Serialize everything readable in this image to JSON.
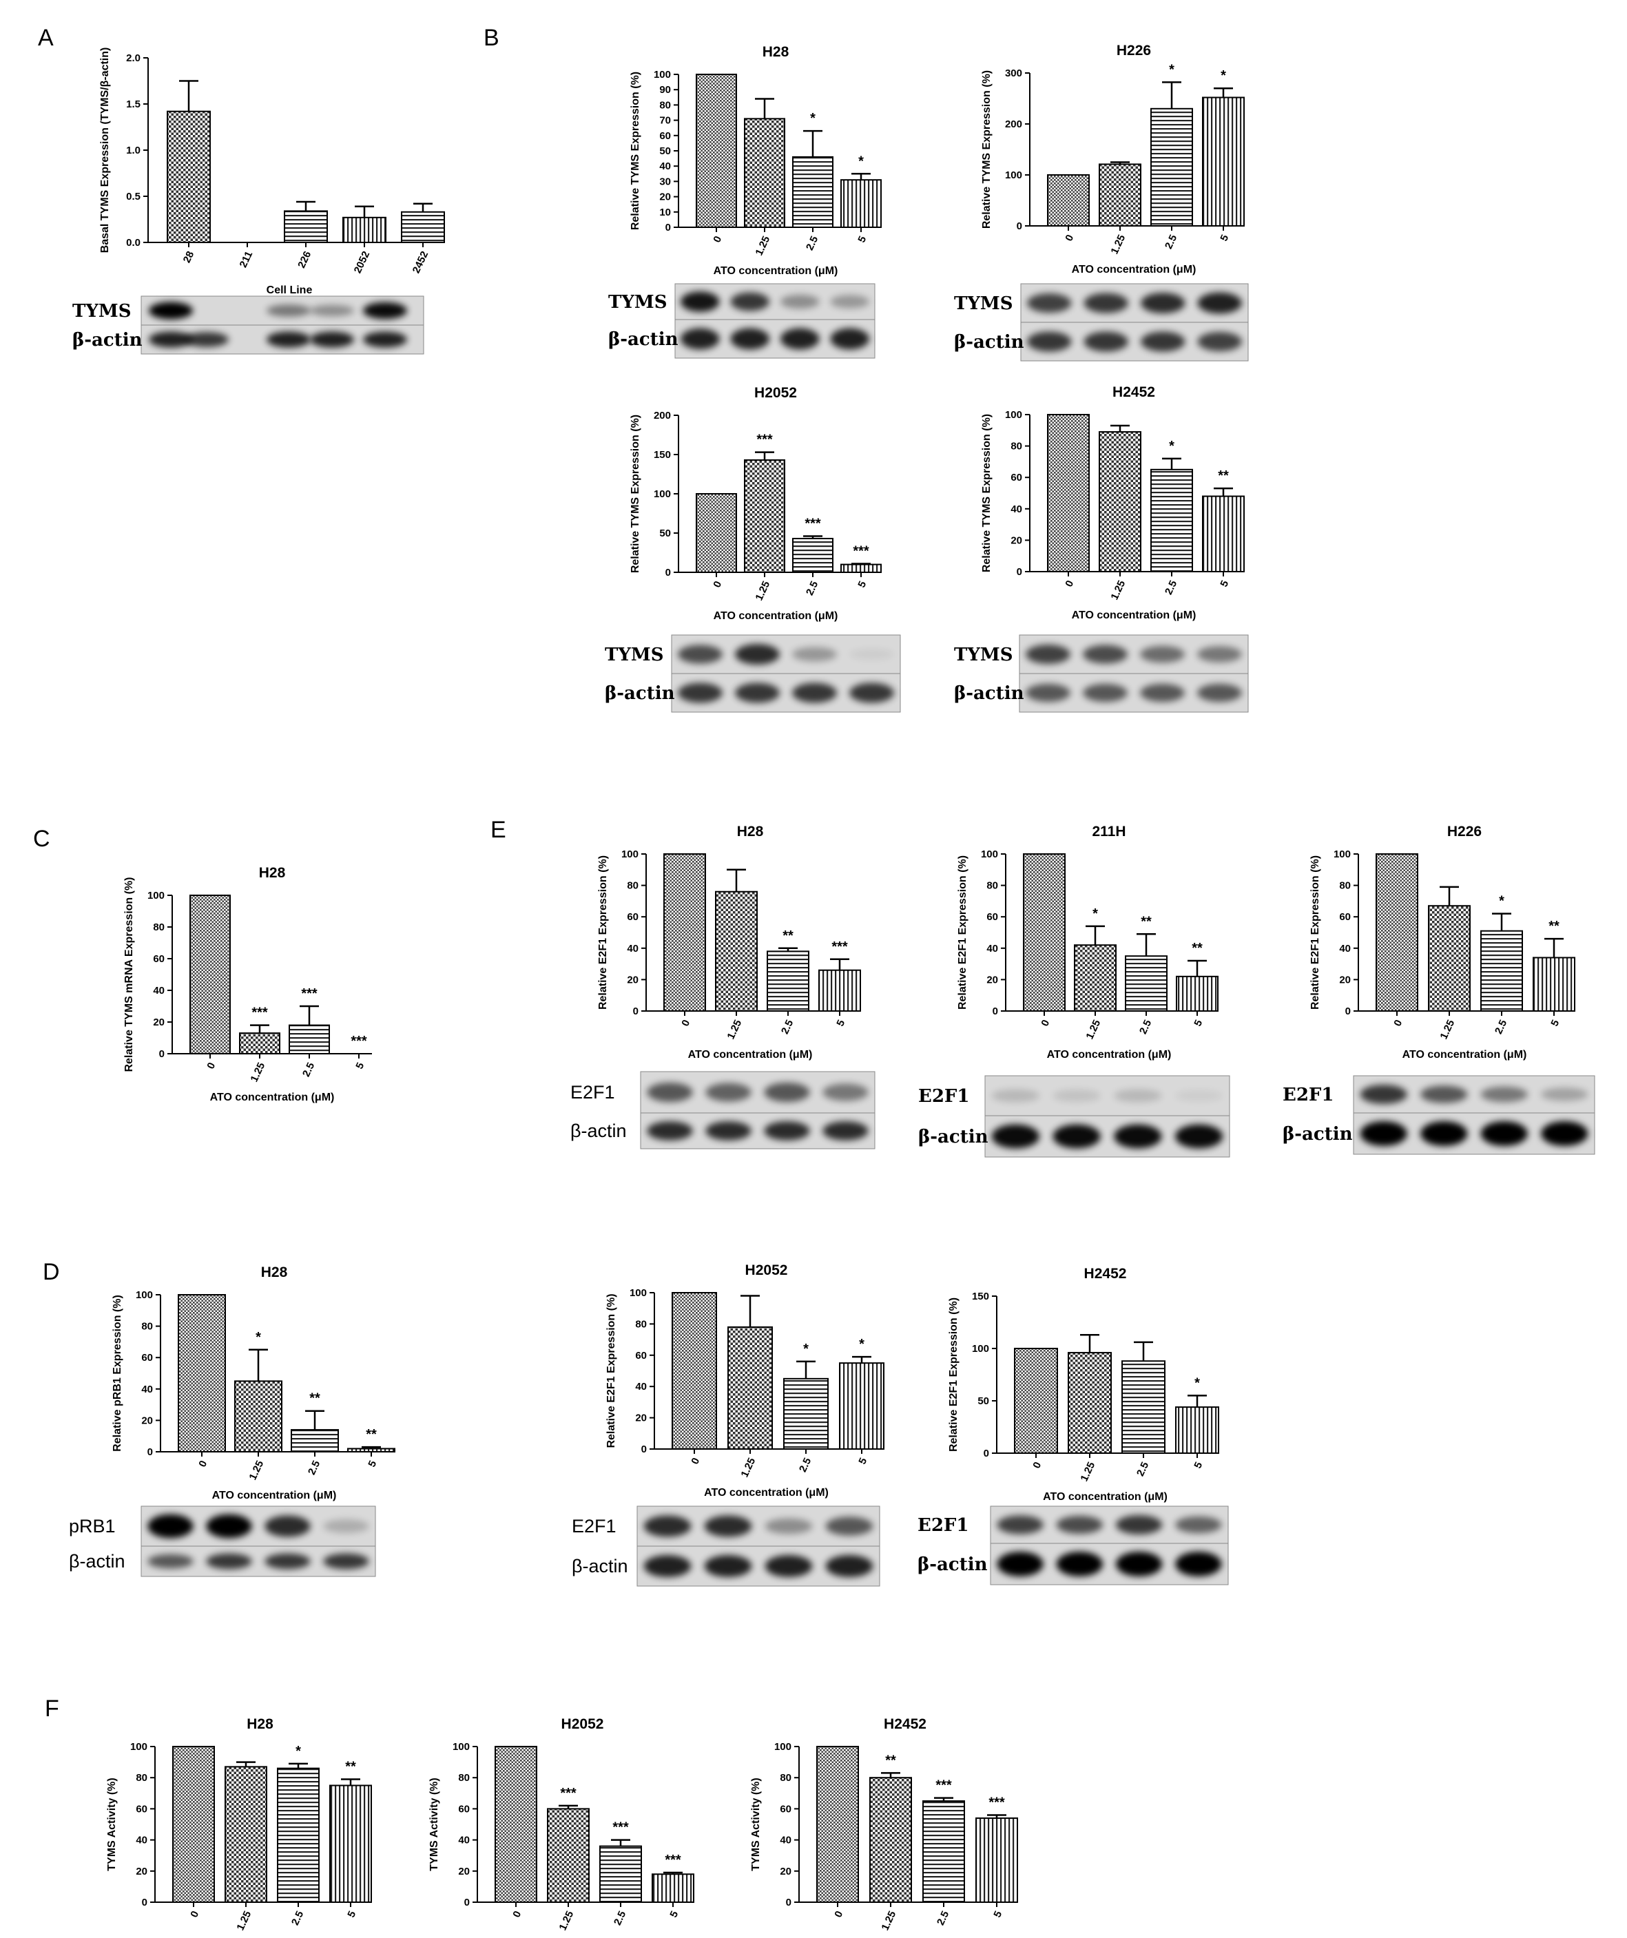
{
  "panels": [
    {
      "label": "A",
      "x": 55,
      "y": 42
    },
    {
      "label": "B",
      "x": 702,
      "y": 42
    },
    {
      "label": "C",
      "x": 48,
      "y": 1205
    },
    {
      "label": "E",
      "x": 712,
      "y": 1192
    },
    {
      "label": "D",
      "x": 62,
      "y": 1834
    },
    {
      "label": "F",
      "x": 65,
      "y": 2468
    }
  ],
  "chart_data": [
    {
      "id": "A",
      "type": "bar",
      "title": "",
      "categories": [
        "28",
        "211",
        "226",
        "2052",
        "2452"
      ],
      "values": [
        1.42,
        0,
        0.34,
        0.27,
        0.33
      ],
      "errors": [
        0.33,
        0,
        0.1,
        0.12,
        0.09
      ],
      "stars": [
        "",
        "",
        "",
        "",
        ""
      ],
      "ylim": [
        0,
        2.0
      ],
      "yticks": [
        "0.0",
        "0.5",
        "1.0",
        "1.5",
        "2.0"
      ],
      "ylabel": "Basal TYMS Expression (TYMS/β-actin)",
      "xlabel": "Cell Line",
      "patterns": [
        "check",
        "none",
        "hline",
        "vline",
        "hline"
      ]
    },
    {
      "id": "B1",
      "type": "bar",
      "title": "H28",
      "categories": [
        "0",
        "1.25",
        "2.5",
        "5"
      ],
      "values": [
        100,
        71,
        46,
        31
      ],
      "errors": [
        0,
        13,
        17,
        4
      ],
      "stars": [
        "",
        "",
        "*",
        "*"
      ],
      "ylim": [
        0,
        100
      ],
      "yticks": [
        "0",
        "10",
        "20",
        "30",
        "40",
        "50",
        "60",
        "70",
        "80",
        "90",
        "100"
      ],
      "ylabel": "Relative TYMS Expression (%)",
      "xlabel": "ATO concentration (μM)",
      "patterns": [
        "dots",
        "check",
        "hline",
        "vline"
      ]
    },
    {
      "id": "B2",
      "type": "bar",
      "title": "H226",
      "categories": [
        "0",
        "1.25",
        "2.5",
        "5"
      ],
      "values": [
        100,
        121,
        230,
        252
      ],
      "errors": [
        0,
        4,
        52,
        18
      ],
      "stars": [
        "",
        "",
        "*",
        "*"
      ],
      "ylim": [
        0,
        300
      ],
      "yticks": [
        "0",
        "100",
        "200",
        "300"
      ],
      "ylabel": "Relative TYMS Expression (%)",
      "xlabel": "ATO concentration (μM)",
      "patterns": [
        "dots",
        "check",
        "hline",
        "vline"
      ]
    },
    {
      "id": "B3",
      "type": "bar",
      "title": "H2052",
      "categories": [
        "0",
        "1.25",
        "2.5",
        "5"
      ],
      "values": [
        100,
        143,
        43,
        10
      ],
      "errors": [
        0,
        10,
        3,
        1
      ],
      "stars": [
        "",
        "***",
        "***",
        "***"
      ],
      "ylim": [
        0,
        200
      ],
      "yticks": [
        "0",
        "50",
        "100",
        "150",
        "200"
      ],
      "ylabel": "Relative TYMS Expression (%)",
      "xlabel": "ATO concentration (μM)",
      "patterns": [
        "dots",
        "check",
        "hline",
        "vline"
      ]
    },
    {
      "id": "B4",
      "type": "bar",
      "title": "H2452",
      "categories": [
        "0",
        "1.25",
        "2.5",
        "5"
      ],
      "values": [
        100,
        89,
        65,
        48
      ],
      "errors": [
        0,
        4,
        7,
        5
      ],
      "stars": [
        "",
        "",
        "*",
        "**"
      ],
      "ylim": [
        0,
        100
      ],
      "yticks": [
        "0",
        "20",
        "40",
        "60",
        "80",
        "100"
      ],
      "ylabel": "Relative TYMS Expression (%)",
      "xlabel": "ATO concentration (μM)",
      "patterns": [
        "dots",
        "check",
        "hline",
        "vline"
      ]
    },
    {
      "id": "C",
      "type": "bar",
      "title": "H28",
      "categories": [
        "0",
        "1.25",
        "2.5",
        "5"
      ],
      "values": [
        100,
        13,
        18,
        0
      ],
      "errors": [
        0,
        5,
        12,
        0
      ],
      "stars": [
        "",
        "***",
        "***",
        "***"
      ],
      "ylim": [
        0,
        100
      ],
      "yticks": [
        "0",
        "20",
        "40",
        "60",
        "80",
        "100"
      ],
      "ylabel": "Relative TYMS mRNA Expression (%)",
      "xlabel": "ATO concentration (μM)",
      "patterns": [
        "dots",
        "check",
        "hline",
        "vline"
      ]
    },
    {
      "id": "E1",
      "type": "bar",
      "title": "H28",
      "categories": [
        "0",
        "1.25",
        "2.5",
        "5"
      ],
      "values": [
        100,
        76,
        38,
        26
      ],
      "errors": [
        0,
        14,
        2,
        7
      ],
      "stars": [
        "",
        "",
        "**",
        "***"
      ],
      "ylim": [
        0,
        100
      ],
      "yticks": [
        "0",
        "20",
        "40",
        "60",
        "80",
        "100"
      ],
      "ylabel": "Relative E2F1 Expression (%)",
      "xlabel": "ATO concentration (μM)",
      "patterns": [
        "dots",
        "check",
        "hline",
        "vline"
      ]
    },
    {
      "id": "E2",
      "type": "bar",
      "title": "211H",
      "categories": [
        "0",
        "1.25",
        "2.5",
        "5"
      ],
      "values": [
        100,
        42,
        35,
        22
      ],
      "errors": [
        0,
        12,
        14,
        10
      ],
      "stars": [
        "",
        "*",
        "**",
        "**"
      ],
      "ylim": [
        0,
        100
      ],
      "yticks": [
        "0",
        "20",
        "40",
        "60",
        "80",
        "100"
      ],
      "ylabel": "Relative E2F1 Expression (%)",
      "xlabel": "ATO concentration (μM)",
      "patterns": [
        "dots",
        "check",
        "hline",
        "vline"
      ]
    },
    {
      "id": "E3",
      "type": "bar",
      "title": "H226",
      "categories": [
        "0",
        "1.25",
        "2.5",
        "5"
      ],
      "values": [
        100,
        67,
        51,
        34
      ],
      "errors": [
        0,
        12,
        11,
        12
      ],
      "stars": [
        "",
        "",
        "*",
        "**"
      ],
      "ylim": [
        0,
        100
      ],
      "yticks": [
        "0",
        "20",
        "40",
        "60",
        "80",
        "100"
      ],
      "ylabel": "Relative E2F1 Expression (%)",
      "xlabel": "ATO concentration (μM)",
      "patterns": [
        "dots",
        "check",
        "hline",
        "vline"
      ]
    },
    {
      "id": "D1",
      "type": "bar",
      "title": "H28",
      "categories": [
        "0",
        "1.25",
        "2.5",
        "5"
      ],
      "values": [
        100,
        45,
        14,
        2
      ],
      "errors": [
        0,
        20,
        12,
        1
      ],
      "stars": [
        "",
        "*",
        "**",
        "**"
      ],
      "ylim": [
        0,
        100
      ],
      "yticks": [
        "0",
        "20",
        "40",
        "60",
        "80",
        "100"
      ],
      "ylabel": "Relative pRB1 Expression (%)",
      "xlabel": "ATO concentration (μM)",
      "patterns": [
        "dots",
        "check",
        "hline",
        "vline"
      ]
    },
    {
      "id": "D2",
      "type": "bar",
      "title": "H2052",
      "categories": [
        "0",
        "1.25",
        "2.5",
        "5"
      ],
      "values": [
        100,
        78,
        45,
        55
      ],
      "errors": [
        0,
        20,
        11,
        4
      ],
      "stars": [
        "",
        "",
        "*",
        "*"
      ],
      "ylim": [
        0,
        100
      ],
      "yticks": [
        "0",
        "20",
        "40",
        "60",
        "80",
        "100"
      ],
      "ylabel": "Relative E2F1 Expression (%)",
      "xlabel": "ATO concentration (μM)",
      "patterns": [
        "dots",
        "check",
        "hline",
        "vline"
      ]
    },
    {
      "id": "D3",
      "type": "bar",
      "title": "H2452",
      "categories": [
        "0",
        "1.25",
        "2.5",
        "5"
      ],
      "values": [
        100,
        96,
        88,
        44
      ],
      "errors": [
        0,
        17,
        18,
        11
      ],
      "stars": [
        "",
        "",
        "",
        "*"
      ],
      "ylim": [
        0,
        150
      ],
      "yticks": [
        "0",
        "50",
        "100",
        "150"
      ],
      "ylabel": "Relative E2F1 Expression (%)",
      "xlabel": "ATO concentration (μM)",
      "patterns": [
        "dots",
        "check",
        "hline",
        "vline"
      ]
    },
    {
      "id": "F1",
      "type": "bar",
      "title": "H28",
      "categories": [
        "0",
        "1.25",
        "2.5",
        "5"
      ],
      "values": [
        100,
        87,
        86,
        75
      ],
      "errors": [
        0,
        3,
        3,
        4
      ],
      "stars": [
        "",
        "",
        "*",
        "**"
      ],
      "ylim": [
        0,
        100
      ],
      "yticks": [
        "0",
        "20",
        "40",
        "60",
        "80",
        "100"
      ],
      "ylabel": "TYMS Activity (%)",
      "xlabel": "ATO concentration (μM)",
      "patterns": [
        "dots",
        "check",
        "hline",
        "vline"
      ]
    },
    {
      "id": "F2",
      "type": "bar",
      "title": "H2052",
      "categories": [
        "0",
        "1.25",
        "2.5",
        "5"
      ],
      "values": [
        100,
        60,
        36,
        18
      ],
      "errors": [
        0,
        2,
        4,
        1
      ],
      "stars": [
        "",
        "***",
        "***",
        "***"
      ],
      "ylim": [
        0,
        100
      ],
      "yticks": [
        "0",
        "20",
        "40",
        "60",
        "80",
        "100"
      ],
      "ylabel": "TYMS Activity (%)",
      "xlabel": "ATO concentration (μM)",
      "patterns": [
        "dots",
        "check",
        "hline",
        "vline"
      ]
    },
    {
      "id": "F3",
      "type": "bar",
      "title": "H2452",
      "categories": [
        "0",
        "1.25",
        "2.5",
        "5"
      ],
      "values": [
        100,
        80,
        65,
        54
      ],
      "errors": [
        0,
        3,
        2,
        2
      ],
      "stars": [
        "",
        "**",
        "***",
        "***"
      ],
      "ylim": [
        0,
        100
      ],
      "yticks": [
        "0",
        "20",
        "40",
        "60",
        "80",
        "100"
      ],
      "ylabel": "TYMS Activity (%)",
      "xlabel": "ATO concentration (μM)",
      "patterns": [
        "dots",
        "check",
        "hline",
        "vline"
      ]
    }
  ],
  "blots": [
    {
      "id": "A",
      "rows": [
        {
          "label": "TYMS",
          "bands": [
            1,
            0,
            0.45,
            0.35,
            0.95
          ]
        },
        {
          "label": "β-actin",
          "bands": [
            0.85,
            0.75,
            0.85,
            0.85,
            0.85
          ]
        }
      ]
    },
    {
      "id": "B1",
      "rows": [
        {
          "label": "TYMS",
          "bands": [
            0.9,
            0.75,
            0.35,
            0.3
          ]
        },
        {
          "label": "β-actin",
          "bands": [
            0.85,
            0.85,
            0.85,
            0.85
          ]
        }
      ]
    },
    {
      "id": "B2",
      "rows": [
        {
          "label": "TYMS",
          "bands": [
            0.7,
            0.75,
            0.8,
            0.85
          ]
        },
        {
          "label": "β-actin",
          "bands": [
            0.75,
            0.75,
            0.75,
            0.7
          ]
        }
      ]
    },
    {
      "id": "B3",
      "rows": [
        {
          "label": "TYMS",
          "bands": [
            0.65,
            0.8,
            0.3,
            0.05
          ]
        },
        {
          "label": "β-actin",
          "bands": [
            0.75,
            0.75,
            0.75,
            0.75
          ]
        }
      ]
    },
    {
      "id": "B4",
      "rows": [
        {
          "label": "TYMS",
          "bands": [
            0.7,
            0.65,
            0.5,
            0.45
          ]
        },
        {
          "label": "β-actin",
          "bands": [
            0.6,
            0.6,
            0.6,
            0.6
          ]
        }
      ]
    },
    {
      "id": "E1",
      "rows": [
        {
          "label": "E2F1",
          "bands": [
            0.6,
            0.55,
            0.6,
            0.45
          ]
        },
        {
          "label": "β-actin",
          "bands": [
            0.8,
            0.8,
            0.8,
            0.8
          ]
        }
      ]
    },
    {
      "id": "E2",
      "rows": [
        {
          "label": "E2F1",
          "bands": [
            0.15,
            0.1,
            0.15,
            0.05
          ]
        },
        {
          "label": "β-actin",
          "bands": [
            0.95,
            0.95,
            0.95,
            0.95
          ]
        }
      ]
    },
    {
      "id": "E3",
      "rows": [
        {
          "label": "E2F1",
          "bands": [
            0.75,
            0.6,
            0.45,
            0.25
          ]
        },
        {
          "label": "β-actin",
          "bands": [
            1,
            1,
            1,
            1
          ]
        }
      ]
    },
    {
      "id": "D1",
      "rows": [
        {
          "label": "pRB1",
          "bands": [
            1,
            1,
            0.8,
            0.2
          ]
        },
        {
          "label": "β-actin",
          "bands": [
            0.6,
            0.75,
            0.75,
            0.75
          ]
        }
      ]
    },
    {
      "id": "D2",
      "rows": [
        {
          "label": "E2F1",
          "bands": [
            0.8,
            0.8,
            0.35,
            0.6
          ]
        },
        {
          "label": "β-actin",
          "bands": [
            0.85,
            0.85,
            0.85,
            0.85
          ]
        }
      ]
    },
    {
      "id": "D3",
      "rows": [
        {
          "label": "E2F1",
          "bands": [
            0.7,
            0.65,
            0.75,
            0.55
          ]
        },
        {
          "label": "β-actin",
          "bands": [
            1,
            1,
            1,
            1
          ]
        }
      ]
    }
  ]
}
